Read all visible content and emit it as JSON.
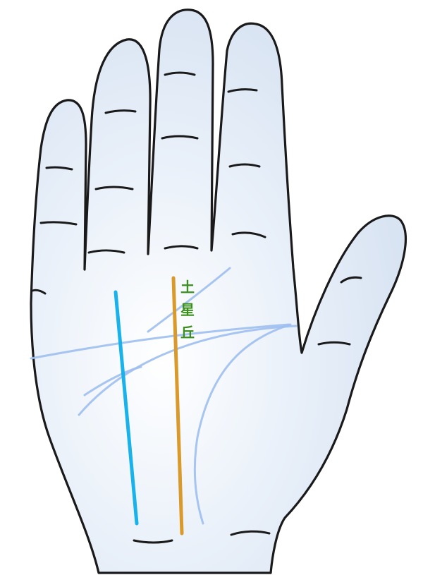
{
  "mount_label": [
    "土",
    "星",
    "丘"
  ],
  "colors": {
    "skin_fill": "#e6eef8",
    "outline": "#1a1a1a",
    "palm_lines": "#9ebff0",
    "blue_line": "#1ab2ea",
    "orange_line": "#d99a2b",
    "label": "#3b8f1f"
  }
}
